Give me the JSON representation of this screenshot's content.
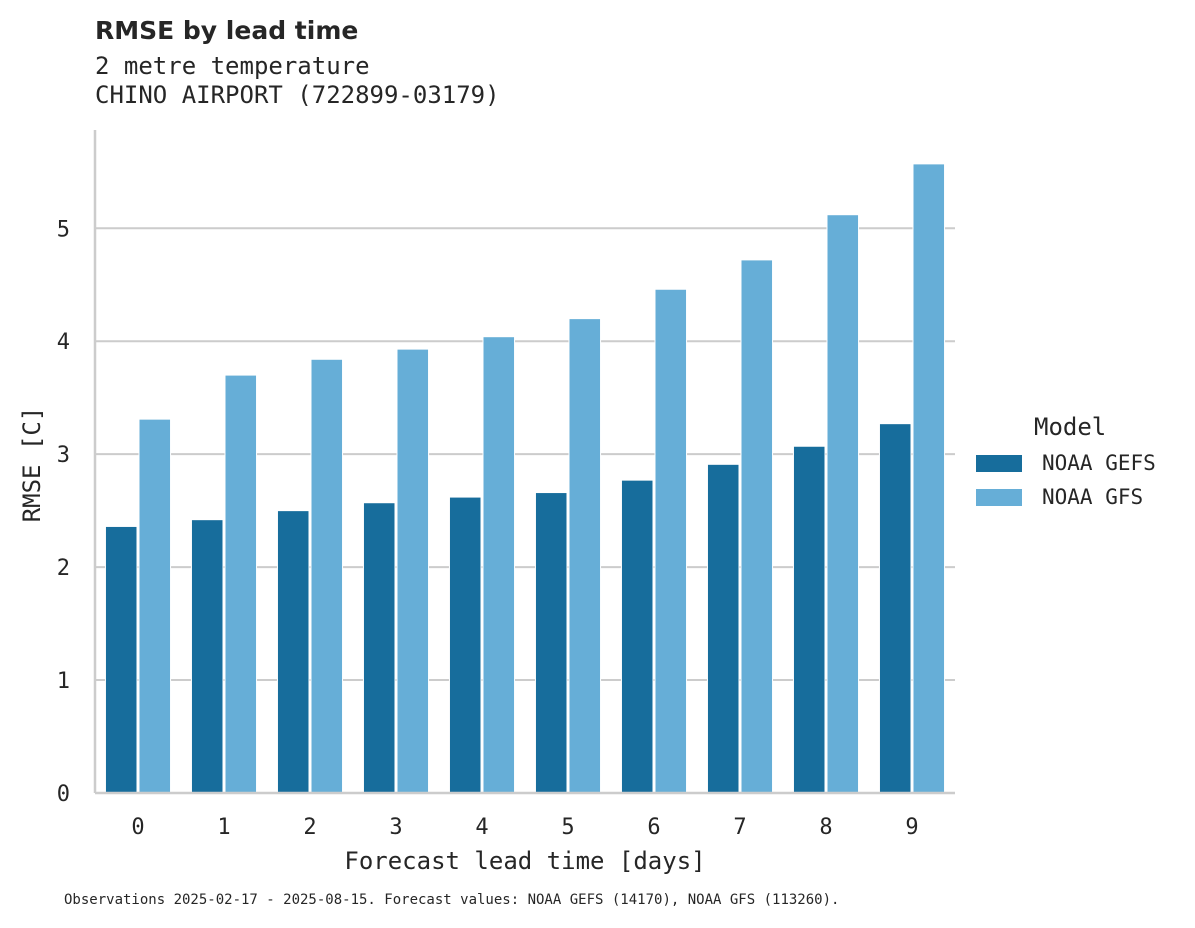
{
  "chart_data": {
    "type": "bar",
    "title": "RMSE by lead time",
    "subtitle_lines": [
      "2 metre temperature",
      "CHINO AIRPORT (722899-03179)"
    ],
    "xlabel": "Forecast lead time [days]",
    "ylabel": "RMSE [C]",
    "categories": [
      "0",
      "1",
      "2",
      "3",
      "4",
      "5",
      "6",
      "7",
      "8",
      "9"
    ],
    "ylim": [
      0,
      5.87
    ],
    "yticks": [
      "0",
      "1",
      "2",
      "3",
      "4",
      "5"
    ],
    "grid": "horizontal",
    "legend": {
      "title": "Model",
      "placement": "right"
    },
    "series": [
      {
        "name": "NOAA GEFS",
        "color": "#176d9c",
        "values": [
          2.36,
          2.42,
          2.5,
          2.57,
          2.62,
          2.66,
          2.77,
          2.91,
          3.07,
          3.27
        ]
      },
      {
        "name": "NOAA GFS",
        "color": "#66aed7",
        "values": [
          3.31,
          3.7,
          3.84,
          3.93,
          4.04,
          4.2,
          4.46,
          4.72,
          5.12,
          5.57
        ]
      }
    ],
    "footnote": "Observations 2025-02-17 - 2025-08-15. Forecast values: NOAA GEFS (14170), NOAA GFS (113260)."
  }
}
